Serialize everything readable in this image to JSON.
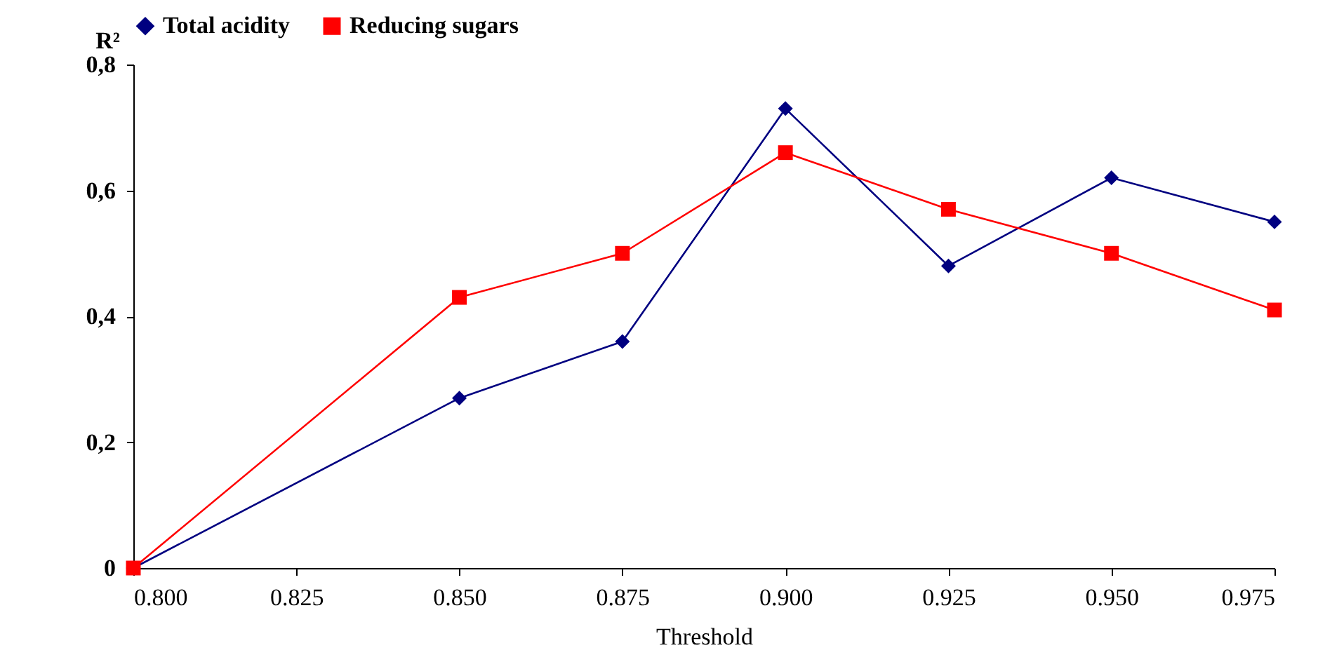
{
  "chart_data": {
    "type": "line",
    "xlabel": "Threshold",
    "ylabel": "R²",
    "x": [
      0.8,
      0.85,
      0.875,
      0.9,
      0.925,
      0.95,
      0.975
    ],
    "series": [
      {
        "name": "Total acidity",
        "color": "#000080",
        "marker": "diamond",
        "values": [
          0,
          0.27,
          0.36,
          0.73,
          0.48,
          0.62,
          0.55
        ]
      },
      {
        "name": "Reducing sugars",
        "color": "#ff0000",
        "marker": "square",
        "values": [
          0,
          0.43,
          0.5,
          0.66,
          0.57,
          0.5,
          0.41
        ]
      }
    ],
    "xlim": [
      0.8,
      0.975
    ],
    "xticks": [
      {
        "value": 0.8,
        "label": "0.800"
      },
      {
        "value": 0.825,
        "label": "0.825"
      },
      {
        "value": 0.85,
        "label": "0.850"
      },
      {
        "value": 0.875,
        "label": "0.875"
      },
      {
        "value": 0.9,
        "label": "0.900"
      },
      {
        "value": 0.925,
        "label": "0.925"
      },
      {
        "value": 0.95,
        "label": "0.950"
      },
      {
        "value": 0.975,
        "label": "0.975"
      }
    ],
    "ylim": [
      0,
      0.8
    ],
    "yticks": [
      0,
      {
        "value": 0.2,
        "label": "0,2"
      },
      {
        "value": 0.4,
        "label": "0,4"
      },
      {
        "value": 0.6,
        "label": "0,6"
      },
      {
        "value": 0.8,
        "label": "0,8"
      }
    ],
    "grid": false,
    "legend": "top",
    "line_style": "solid"
  }
}
